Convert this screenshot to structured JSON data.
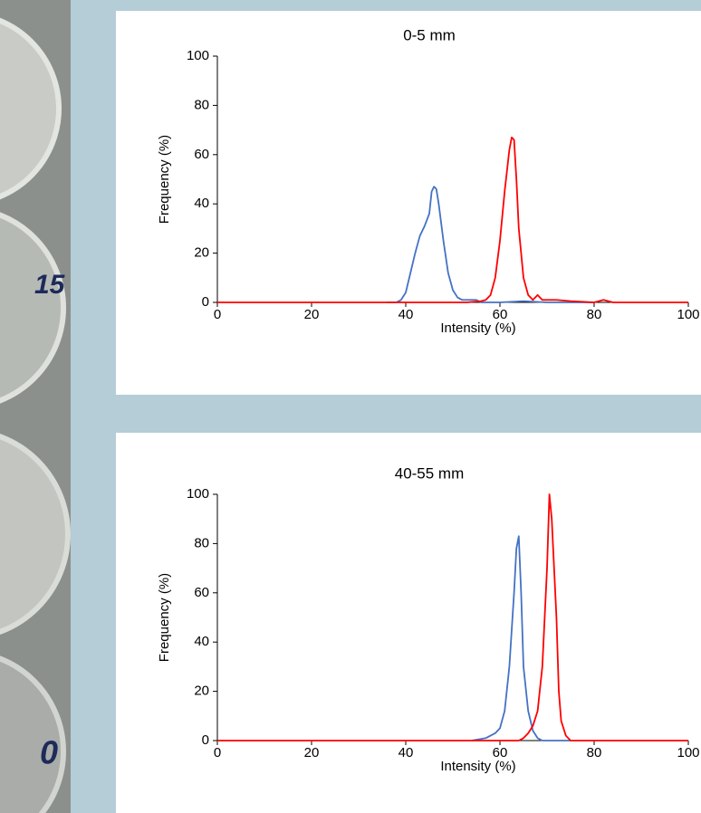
{
  "photo_labels": [
    "15",
    "0"
  ],
  "chart_data": [
    {
      "type": "line",
      "title": "0-5 mm",
      "xlabel": "Intensity (%)",
      "ylabel": "Frequency (%)",
      "xlim": [
        0,
        100
      ],
      "ylim": [
        0,
        100
      ],
      "xticks": [
        0,
        20,
        40,
        60,
        80,
        100
      ],
      "yticks": [
        0,
        20,
        40,
        60,
        80,
        100
      ],
      "series": [
        {
          "color": "#4472c4",
          "x": [
            36,
            38,
            39,
            40,
            41,
            42,
            43,
            44,
            45,
            45.5,
            46,
            46.5,
            47,
            48,
            49,
            50,
            51,
            52,
            53,
            54,
            55,
            56,
            60,
            65,
            70,
            80
          ],
          "values": [
            0,
            0,
            1,
            4,
            12,
            20,
            27,
            31,
            36,
            45,
            47,
            46,
            40,
            25,
            12,
            5,
            2,
            1,
            1,
            1,
            1,
            0,
            0,
            0.5,
            0,
            0
          ]
        },
        {
          "color": "#ff0000",
          "x": [
            0,
            53,
            56,
            57,
            58,
            59,
            60,
            61,
            62,
            62.5,
            63,
            63.5,
            64,
            65,
            66,
            67,
            68,
            69,
            70,
            72,
            75,
            80,
            82,
            83,
            84,
            100
          ],
          "values": [
            0,
            0,
            0.5,
            1,
            3,
            10,
            25,
            45,
            62,
            67,
            66,
            50,
            30,
            10,
            3,
            1,
            3,
            1,
            1,
            1,
            0.5,
            0,
            1,
            0.5,
            0,
            0
          ]
        }
      ]
    },
    {
      "type": "line",
      "title": "40-55 mm",
      "xlabel": "Intensity (%)",
      "ylabel": "Frequency (%)",
      "xlim": [
        0,
        100
      ],
      "ylim": [
        0,
        100
      ],
      "xticks": [
        0,
        20,
        40,
        60,
        80,
        100
      ],
      "yticks": [
        0,
        20,
        40,
        60,
        80,
        100
      ],
      "series": [
        {
          "color": "#4472c4",
          "x": [
            54,
            57,
            59,
            60,
            61,
            62,
            63,
            63.5,
            64,
            64.5,
            65,
            66,
            67,
            68,
            69,
            75
          ],
          "values": [
            0,
            1,
            3,
            5,
            12,
            30,
            60,
            78,
            83,
            60,
            30,
            12,
            4,
            1,
            0,
            0
          ]
        },
        {
          "color": "#ff0000",
          "x": [
            0,
            64,
            65,
            66,
            67,
            68,
            69,
            70,
            70.5,
            71,
            72,
            72.5,
            73,
            74,
            75,
            100
          ],
          "values": [
            0,
            0,
            1,
            3,
            6,
            12,
            30,
            70,
            100,
            90,
            50,
            20,
            8,
            2,
            0,
            0
          ]
        }
      ]
    }
  ]
}
